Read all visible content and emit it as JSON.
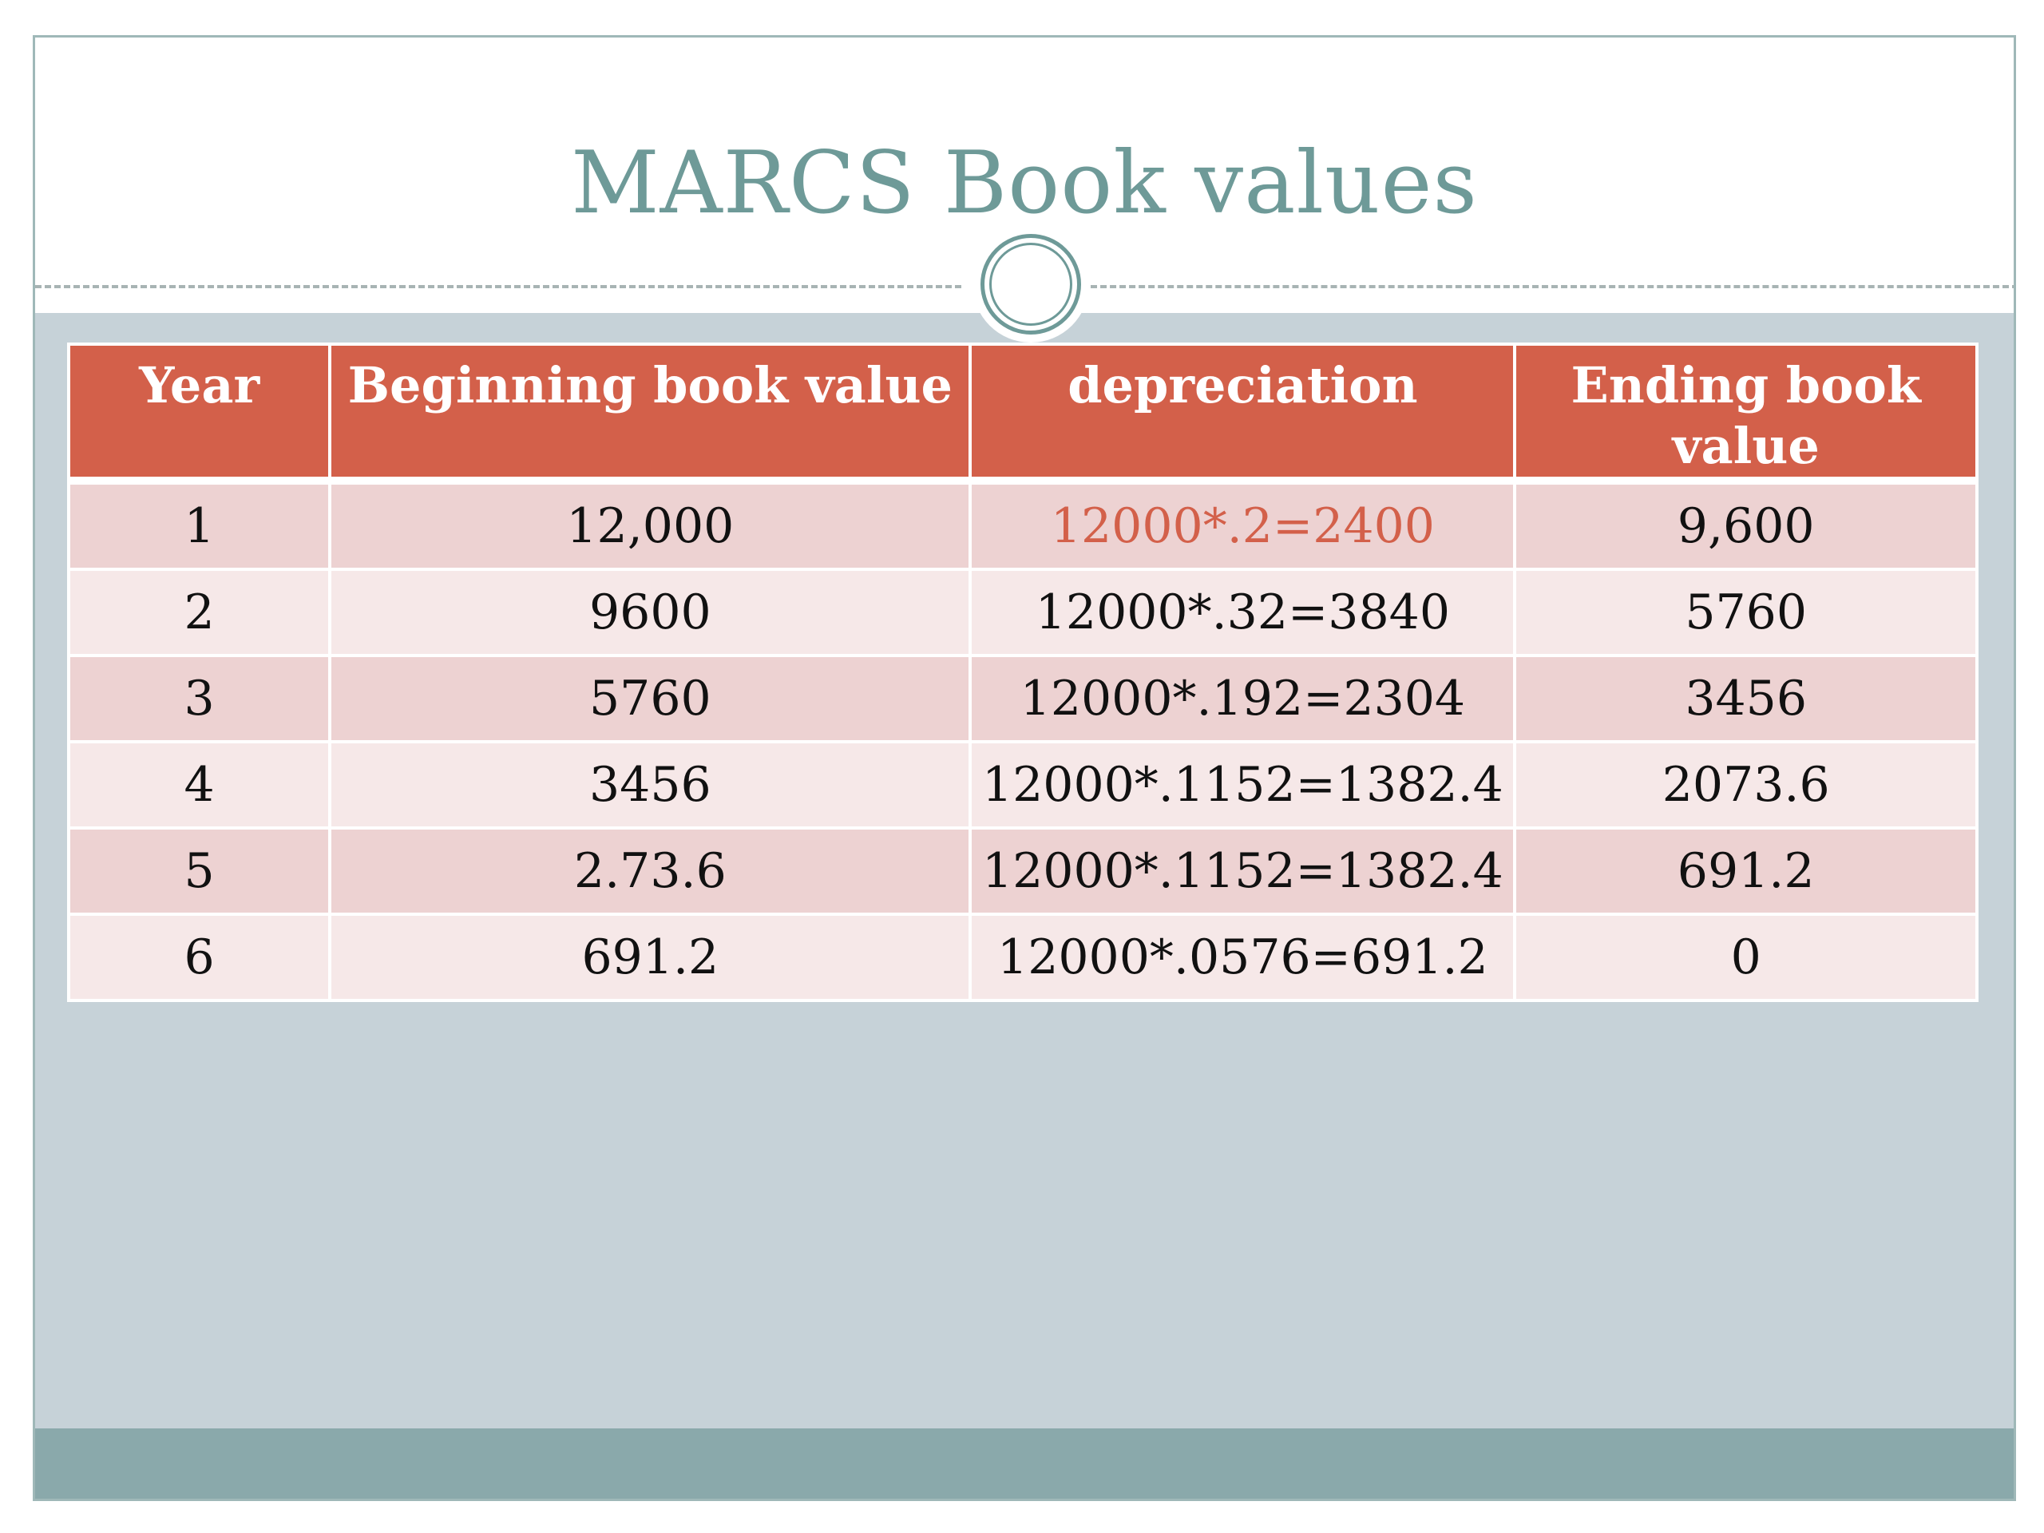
{
  "slide": {
    "title": "MARCS Book values",
    "accent_color": "#d3604a",
    "title_color": "#6e9a98"
  },
  "table": {
    "headers": [
      "Year",
      "Beginning book value",
      "depreciation",
      "Ending book value"
    ],
    "rows": [
      {
        "year": "1",
        "beginning": "12,000",
        "depreciation": "12000*.2=2400",
        "ending": "9,600"
      },
      {
        "year": "2",
        "beginning": "9600",
        "depreciation": "12000*.32=3840",
        "ending": "5760"
      },
      {
        "year": "3",
        "beginning": "5760",
        "depreciation": "12000*.192=2304",
        "ending": "3456"
      },
      {
        "year": "4",
        "beginning": "3456",
        "depreciation": "12000*.1152=1382.4",
        "ending": "2073.6"
      },
      {
        "year": "5",
        "beginning": "2.73.6",
        "depreciation": "12000*.1152=1382.4",
        "ending": "691.2"
      },
      {
        "year": "6",
        "beginning": "691.2",
        "depreciation": "12000*.0576=691.2",
        "ending": "0"
      }
    ]
  }
}
